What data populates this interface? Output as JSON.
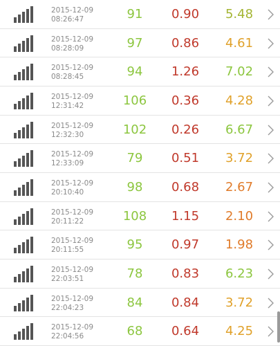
{
  "colors": {
    "value_green": "#8cc63f",
    "value_red": "#c0392b",
    "value_orange": "#e08e2a",
    "value_yellow_green": "#a4b533"
  },
  "icons": {
    "signal": "signal-bars-icon",
    "chevron": "chevron-right-icon"
  },
  "rows": [
    {
      "date": "2015-12-09",
      "time": "08:26:47",
      "v1": "91",
      "v2": "0.90",
      "v3": "5.48",
      "v3_color": "#a4b533"
    },
    {
      "date": "2015-12-09",
      "time": "08:28:09",
      "v1": "97",
      "v2": "0.86",
      "v3": "4.61",
      "v3_color": "#e0a12a"
    },
    {
      "date": "2015-12-09",
      "time": "08:28:45",
      "v1": "94",
      "v2": "1.26",
      "v3": "7.02",
      "v3_color": "#8cc63f"
    },
    {
      "date": "2015-12-09",
      "time": "12:31:42",
      "v1": "106",
      "v2": "0.36",
      "v3": "4.28",
      "v3_color": "#e0a12a"
    },
    {
      "date": "2015-12-09",
      "time": "12:32:30",
      "v1": "102",
      "v2": "0.26",
      "v3": "6.67",
      "v3_color": "#8cc63f"
    },
    {
      "date": "2015-12-09",
      "time": "12:33:09",
      "v1": "79",
      "v2": "0.51",
      "v3": "3.72",
      "v3_color": "#e0a12a"
    },
    {
      "date": "2015-12-09",
      "time": "20:10:40",
      "v1": "98",
      "v2": "0.68",
      "v3": "2.67",
      "v3_color": "#e07b2a"
    },
    {
      "date": "2015-12-09",
      "time": "20:11:22",
      "v1": "108",
      "v2": "1.15",
      "v3": "2.10",
      "v3_color": "#e07b2a"
    },
    {
      "date": "2015-12-09",
      "time": "20:11:55",
      "v1": "95",
      "v2": "0.97",
      "v3": "1.98",
      "v3_color": "#e07b2a"
    },
    {
      "date": "2015-12-09",
      "time": "22:03:51",
      "v1": "78",
      "v2": "0.83",
      "v3": "6.23",
      "v3_color": "#8cc63f"
    },
    {
      "date": "2015-12-09",
      "time": "22:04:23",
      "v1": "84",
      "v2": "0.84",
      "v3": "3.72",
      "v3_color": "#e0a12a"
    },
    {
      "date": "2015-12-09",
      "time": "22:04:56",
      "v1": "68",
      "v2": "0.64",
      "v3": "4.25",
      "v3_color": "#e0a12a"
    }
  ]
}
